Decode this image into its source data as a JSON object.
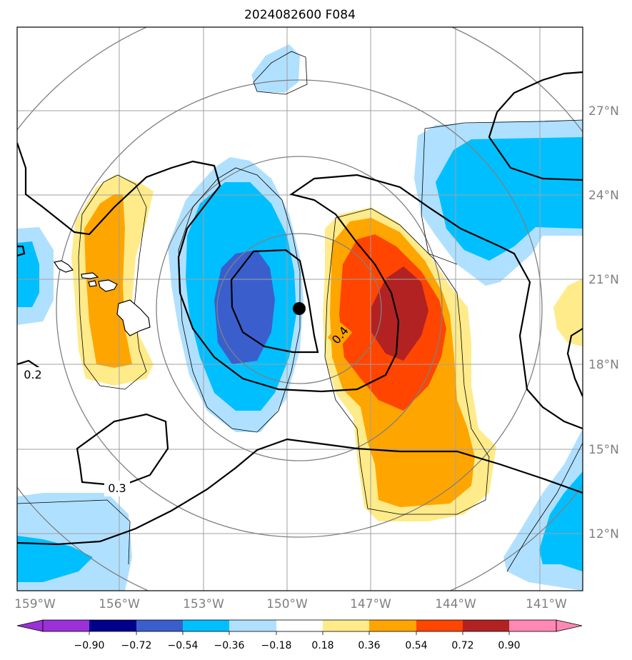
{
  "title": "2024082600 F084",
  "lon_ticks": [
    "159°W",
    "156°W",
    "153°W",
    "150°W",
    "147°W",
    "144°W",
    "141°W"
  ],
  "lat_ticks": [
    "27°N",
    "24°N",
    "21°N",
    "18°N",
    "15°N",
    "12°N"
  ],
  "colorbar": {
    "labels": [
      "−0.90",
      "−0.72",
      "−0.54",
      "−0.36",
      "−0.18",
      "0.18",
      "0.36",
      "0.54",
      "0.72",
      "0.90"
    ],
    "colors": [
      "#9b30d9",
      "#00008b",
      "#3a5fcd",
      "#00bfff",
      "#b0e0ff",
      "#ffffff",
      "#ffeb8a",
      "#ffa500",
      "#ff4500",
      "#b22222",
      "#ff88b4"
    ]
  },
  "contour_labels": [
    "0.4",
    "0.2",
    "0.3"
  ],
  "fill_colors": {
    "light_blue": "#b0e0ff",
    "blue": "#00bfff",
    "dark_blue": "#3a5fcd",
    "yellow": "#ffeb8a",
    "orange": "#ffa500",
    "red_orange": "#ff4500",
    "dark_red": "#b22222"
  },
  "storm_marker": "storm-center-dot"
}
